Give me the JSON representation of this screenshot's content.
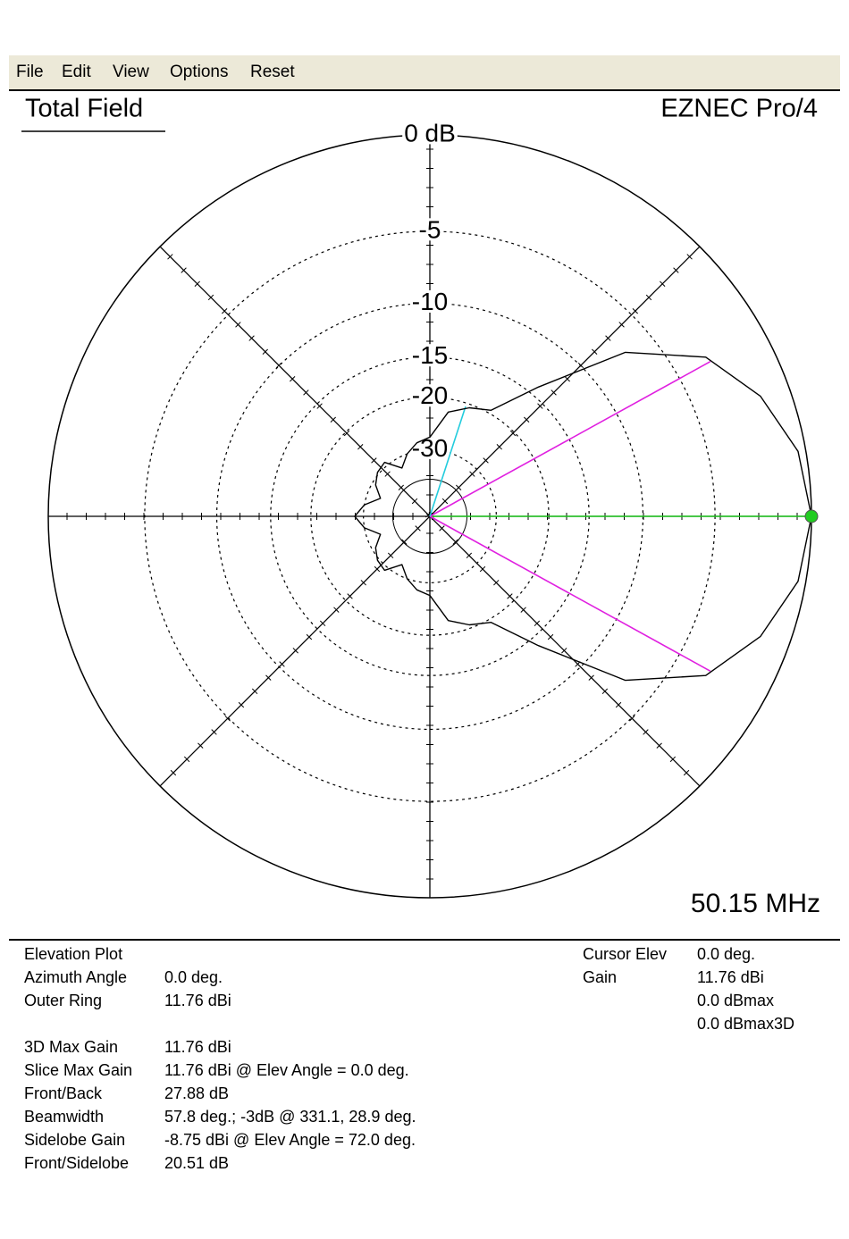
{
  "menu": [
    "File",
    "Edit",
    "View",
    "Options",
    "Reset"
  ],
  "header": {
    "title": "Total Field",
    "product": "EZNEC Pro/4"
  },
  "chart_data": {
    "type": "polar",
    "radial_scale": "arrl-log",
    "color": "#000000",
    "x": [
      0,
      10,
      20,
      30,
      40,
      50,
      60,
      70,
      80,
      90,
      100,
      110,
      120,
      130,
      140,
      150,
      160,
      170,
      180,
      190,
      200,
      210,
      220,
      230,
      240,
      250,
      260,
      270,
      280,
      290,
      300,
      310,
      320,
      330,
      340,
      350
    ],
    "values": [
      0,
      -0.35,
      -1.4,
      -3.1,
      -6.9,
      -14,
      -19.5,
      -20.5,
      -22,
      -27,
      -28,
      -30,
      -33,
      -29,
      -29.5,
      -31,
      -34,
      -30,
      -27.88,
      -30,
      -34,
      -31,
      -29.5,
      -29,
      -33,
      -30,
      -28,
      -27,
      -22,
      -20.5,
      -19.5,
      -14,
      -6.9,
      -3.1,
      -1.4,
      -0.35
    ],
    "rlim": [
      -40,
      0
    ],
    "rticks": [
      {
        "value": 0,
        "label": "0 dB"
      },
      -5,
      -10,
      -15,
      -20,
      -30
    ],
    "markers": [
      {
        "angle": 0,
        "value": 0,
        "color": "#22cc22"
      },
      {
        "angle": 28.9,
        "value": -3,
        "color": "#e020e0"
      },
      {
        "angle": 331.1,
        "value": -3,
        "color": "#e020e0"
      },
      {
        "angle": 72,
        "value": -20.51,
        "color": "#22ccdd"
      }
    ]
  },
  "frequency": "50.15 MHz",
  "info": {
    "heading": "Elevation Plot",
    "rows": [
      [
        "Azimuth Angle",
        "0.0 deg."
      ],
      [
        "Outer Ring",
        "11.76 dBi"
      ],
      [
        "3D Max Gain",
        "11.76 dBi"
      ],
      [
        "Slice Max Gain",
        "11.76 dBi @ Elev Angle = 0.0 deg."
      ],
      [
        "Front/Back",
        "27.88 dB"
      ],
      [
        "Beamwidth",
        "57.8 deg.; -3dB @ 331.1, 28.9 deg."
      ],
      [
        "Sidelobe Gain",
        "-8.75 dBi @ Elev Angle = 72.0 deg."
      ],
      [
        "Front/Sidelobe",
        "20.51 dB"
      ]
    ],
    "cursor": [
      [
        "Cursor Elev",
        "0.0 deg."
      ],
      [
        "Gain",
        "11.76 dBi"
      ]
    ],
    "cursor_extra": [
      "0.0 dBmax",
      "0.0 dBmax3D"
    ]
  }
}
